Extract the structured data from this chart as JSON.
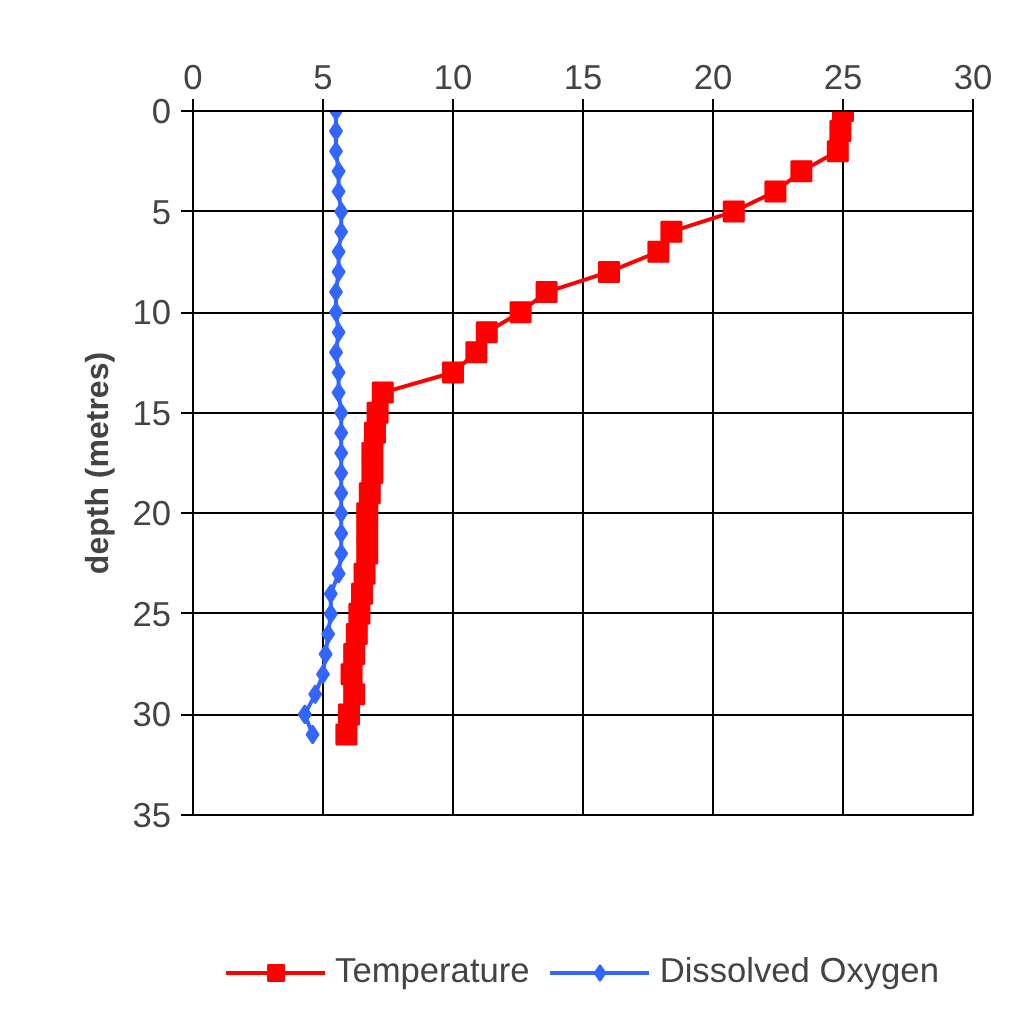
{
  "chart_data": {
    "type": "line",
    "ylabel": "depth (metres)",
    "xlim": [
      0,
      30
    ],
    "xticks": [
      0,
      5,
      10,
      15,
      20,
      25,
      30
    ],
    "ylim": [
      35,
      0
    ],
    "yticks": [
      0,
      5,
      10,
      15,
      20,
      25,
      30,
      35
    ],
    "grid": true,
    "legend": "bottom",
    "series": [
      {
        "name": "Temperature",
        "color": "#ff0000",
        "marker": "square",
        "x": [
          25.0,
          24.9,
          24.8,
          23.4,
          22.4,
          20.8,
          18.4,
          17.9,
          16.0,
          13.6,
          12.6,
          11.3,
          10.9,
          10.0,
          7.3,
          7.1,
          7.0,
          6.9,
          6.9,
          6.8,
          6.7,
          6.7,
          6.7,
          6.6,
          6.5,
          6.4,
          6.3,
          6.2,
          6.1,
          6.2,
          6.0,
          5.9
        ],
        "values": [
          0,
          1,
          2,
          3,
          4,
          5,
          6,
          7,
          8,
          9,
          10,
          11,
          12,
          13,
          14,
          15,
          16,
          17,
          18,
          19,
          20,
          21,
          22,
          23,
          24,
          25,
          26,
          27,
          28,
          29,
          30,
          31
        ]
      },
      {
        "name": "Dissolved Oxygen",
        "color": "#3366ff",
        "marker": "diamond",
        "x": [
          5.5,
          5.5,
          5.5,
          5.6,
          5.6,
          5.7,
          5.7,
          5.6,
          5.6,
          5.5,
          5.5,
          5.6,
          5.5,
          5.6,
          5.6,
          5.7,
          5.7,
          5.7,
          5.7,
          5.7,
          5.7,
          5.7,
          5.7,
          5.6,
          5.3,
          5.3,
          5.2,
          5.1,
          5.0,
          4.7,
          4.3,
          4.6
        ],
        "values": [
          0,
          1,
          2,
          3,
          4,
          5,
          6,
          7,
          8,
          9,
          10,
          11,
          12,
          13,
          14,
          15,
          16,
          17,
          18,
          19,
          20,
          21,
          22,
          23,
          24,
          25,
          26,
          27,
          28,
          29,
          30,
          31
        ]
      }
    ]
  }
}
